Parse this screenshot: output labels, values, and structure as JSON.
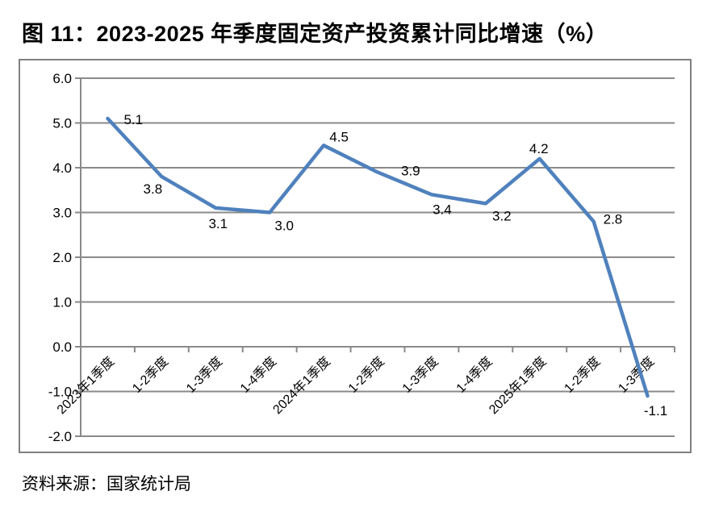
{
  "figure": {
    "title": "图 11：2023-2025 年季度固定资产投资累计同比增速（%）",
    "source": "资料来源：国家统计局"
  },
  "chart_data": {
    "type": "line",
    "title": "图 11：2023-2025 年季度固定资产投资累计同比增速（%）",
    "categories": [
      "2023年1季度",
      "1-2季度",
      "1-3季度",
      "1-4季度",
      "2024年1季度",
      "1-2季度",
      "1-3季度",
      "1-4季度",
      "2025年1季度",
      "1-2季度",
      "1-3季度"
    ],
    "values": [
      5.1,
      3.8,
      3.1,
      3.0,
      4.5,
      3.9,
      3.4,
      3.2,
      4.2,
      2.8,
      -1.1
    ],
    "data_labels": [
      "5.1",
      "3.8",
      "3.1",
      "3.0",
      "4.5",
      "3.9",
      "3.4",
      "3.2",
      "4.2",
      "2.8",
      "-1.1"
    ],
    "xlabel": "",
    "ylabel": "",
    "ylim": [
      -2.0,
      6.0
    ],
    "ytick_step": 1.0,
    "yticks": [
      "6.0",
      "5.0",
      "4.0",
      "3.0",
      "2.0",
      "1.0",
      "0.0",
      "-1.0",
      "-2.0"
    ],
    "grid": true,
    "legend": "none",
    "x_label_rotation": 45,
    "colors": {
      "line": "#4F81BD",
      "grid": "#8A8A8A",
      "frame": "#808080",
      "text": "#000000"
    }
  }
}
